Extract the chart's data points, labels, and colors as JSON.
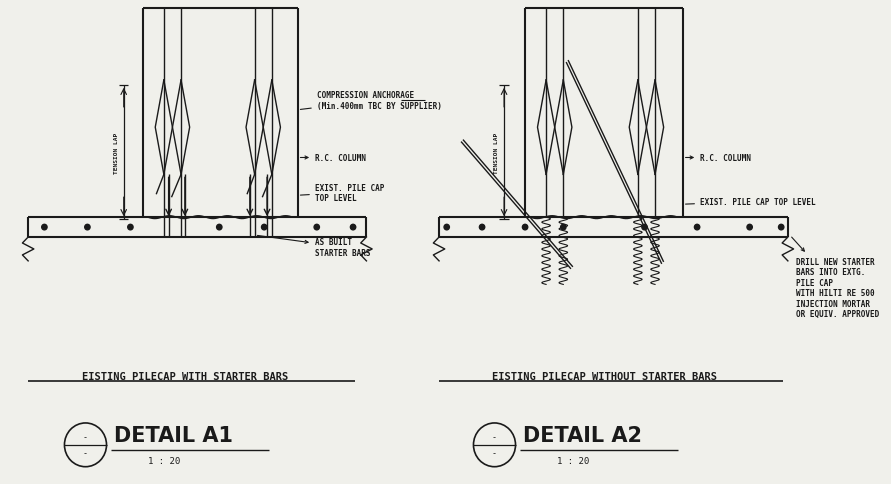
{
  "bg_color": "#f0f0eb",
  "line_color": "#1a1a1a",
  "title1": "EISTING PILECAP WITH STARTER BARS",
  "title2": "EISTING PILECAP WITHOUT STARTER BARS",
  "detail1_label": "DETAIL A1",
  "detail2_label": "DETAIL A2",
  "scale": "1 : 20",
  "label_rc_column": "R.C. COLUMN",
  "label_exist_pile_cap1": "EXIST. PILE CAP\nTOP LEVEL",
  "label_exist_pile_cap2": "EXIST. PILE CAP TOP LEVEL",
  "label_tension_lap": "TENSION LAP",
  "label_compression": "COMPRESSION ANCHORAGE\n(Min.400mm TBC BY SUPPLIER)",
  "label_as_built": "AS BUILT\nSTARTER BARS",
  "label_drill": "DRILL NEW STARTER\nBARS INTO EXTG.\nPILE CAP\nWITH HILTI RE 500\nINJECTION MORTAR\nOR EQUIV. APPROVED"
}
